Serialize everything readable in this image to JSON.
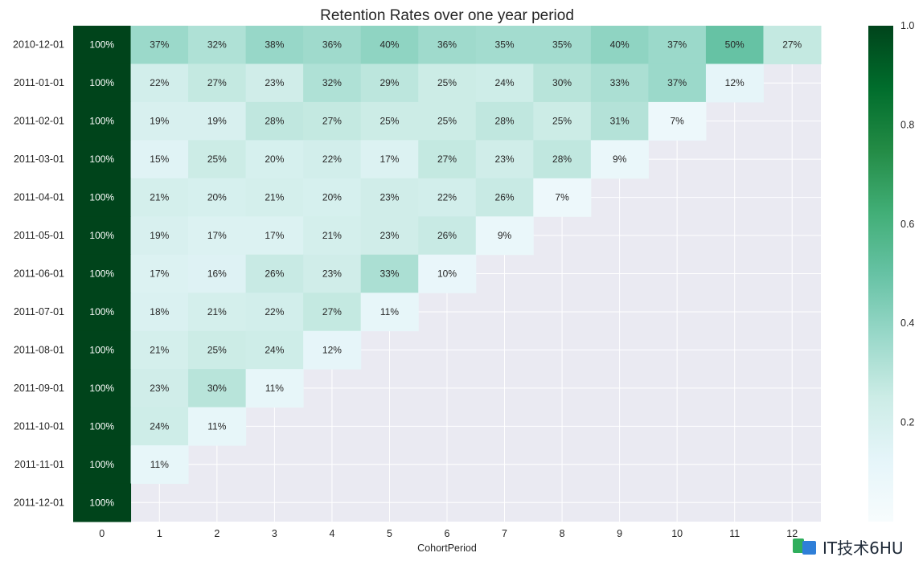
{
  "chart_data": {
    "type": "heatmap",
    "title": "Retention Rates over one year period",
    "xlabel": "CohortPeriod",
    "ylabel": "",
    "x_categories": [
      "0",
      "1",
      "2",
      "3",
      "4",
      "5",
      "6",
      "7",
      "8",
      "9",
      "10",
      "11",
      "12"
    ],
    "y_categories": [
      "2010-12-01",
      "2011-01-01",
      "2011-02-01",
      "2011-03-01",
      "2011-04-01",
      "2011-05-01",
      "2011-06-01",
      "2011-07-01",
      "2011-08-01",
      "2011-09-01",
      "2011-10-01",
      "2011-11-01",
      "2011-12-01"
    ],
    "values": [
      [
        1.0,
        0.37,
        0.32,
        0.38,
        0.36,
        0.4,
        0.36,
        0.35,
        0.35,
        0.4,
        0.37,
        0.5,
        0.27
      ],
      [
        1.0,
        0.22,
        0.27,
        0.23,
        0.32,
        0.29,
        0.25,
        0.24,
        0.3,
        0.33,
        0.37,
        0.12,
        null
      ],
      [
        1.0,
        0.19,
        0.19,
        0.28,
        0.27,
        0.25,
        0.25,
        0.28,
        0.25,
        0.31,
        0.07,
        null,
        null
      ],
      [
        1.0,
        0.15,
        0.25,
        0.2,
        0.22,
        0.17,
        0.27,
        0.23,
        0.28,
        0.09,
        null,
        null,
        null
      ],
      [
        1.0,
        0.21,
        0.2,
        0.21,
        0.2,
        0.23,
        0.22,
        0.26,
        0.07,
        null,
        null,
        null,
        null
      ],
      [
        1.0,
        0.19,
        0.17,
        0.17,
        0.21,
        0.23,
        0.26,
        0.09,
        null,
        null,
        null,
        null,
        null
      ],
      [
        1.0,
        0.17,
        0.16,
        0.26,
        0.23,
        0.33,
        0.1,
        null,
        null,
        null,
        null,
        null,
        null
      ],
      [
        1.0,
        0.18,
        0.21,
        0.22,
        0.27,
        0.11,
        null,
        null,
        null,
        null,
        null,
        null,
        null
      ],
      [
        1.0,
        0.21,
        0.25,
        0.24,
        0.12,
        null,
        null,
        null,
        null,
        null,
        null,
        null,
        null
      ],
      [
        1.0,
        0.23,
        0.3,
        0.11,
        null,
        null,
        null,
        null,
        null,
        null,
        null,
        null,
        null
      ],
      [
        1.0,
        0.24,
        0.11,
        null,
        null,
        null,
        null,
        null,
        null,
        null,
        null,
        null,
        null
      ],
      [
        1.0,
        0.11,
        null,
        null,
        null,
        null,
        null,
        null,
        null,
        null,
        null,
        null,
        null
      ],
      [
        1.0,
        null,
        null,
        null,
        null,
        null,
        null,
        null,
        null,
        null,
        null,
        null,
        null
      ]
    ],
    "value_format": "percent",
    "colormap": "BuGn",
    "vmin": 0.0,
    "vmax": 1.0,
    "colorbar_ticks": [
      "0.2",
      "0.4",
      "0.6",
      "0.8",
      "1.0"
    ],
    "background_color": "#eaeaf2",
    "grid": true
  },
  "watermark": {
    "text": "IT技术6HU"
  }
}
